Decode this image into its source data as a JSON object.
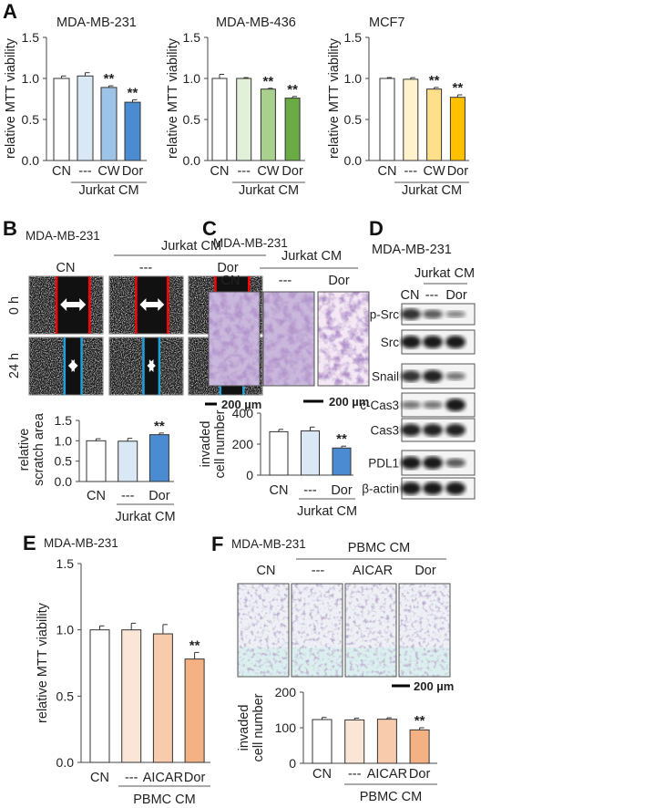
{
  "panels": {
    "A": {
      "label": "A"
    },
    "B": {
      "label": "B",
      "cell_line": "MDA-MB-231",
      "group": "Jurkat CM",
      "columns": [
        "CN",
        "---",
        "Dor"
      ],
      "rows": [
        "0 h",
        "24 h"
      ],
      "scale_bar": "200 µm"
    },
    "C": {
      "label": "C",
      "cell_line": "MDA-MB-231",
      "group": "Jurkat CM",
      "columns": [
        "CN",
        "---",
        "Dor"
      ],
      "scale_bar": "200 µm"
    },
    "D": {
      "label": "D",
      "cell_line": "MDA-MB-231",
      "group": "Jurkat CM",
      "columns": [
        "CN",
        "---",
        "Dor"
      ],
      "blots": [
        {
          "name": "p-Src",
          "intensity": [
            0.85,
            0.6,
            0.35
          ]
        },
        {
          "name": "Src",
          "intensity": [
            1,
            1,
            1
          ]
        },
        {
          "name": "Snail",
          "intensity": [
            0.85,
            0.95,
            0.45
          ]
        },
        {
          "name": "c-Cas3",
          "intensity": [
            0.45,
            0.45,
            1
          ]
        },
        {
          "name": "Cas3",
          "intensity": [
            0.95,
            0.95,
            0.95
          ]
        },
        {
          "name": "PDL1",
          "intensity": [
            1,
            1,
            0.6
          ]
        },
        {
          "name": "β-actin",
          "intensity": [
            1,
            1,
            1
          ]
        }
      ]
    },
    "E": {
      "label": "E",
      "cell_line": "MDA-MB-231"
    },
    "F": {
      "label": "F",
      "cell_line": "MDA-MB-231",
      "group": "PBMC CM",
      "columns": [
        "CN",
        "---",
        "AICAR",
        "Dor"
      ],
      "scale_bar": "200 µm"
    }
  },
  "chart_data": [
    {
      "id": "A1",
      "type": "bar",
      "title": "MDA-MB-231",
      "ylabel": "relative MTT viability",
      "ylim": [
        0,
        1.5
      ],
      "yticks": [
        "0.0",
        "0.5",
        "1.0",
        "1.5"
      ],
      "categories": [
        "CN",
        "---",
        "CW",
        "Dor"
      ],
      "values": [
        1.0,
        1.03,
        0.89,
        0.71
      ],
      "errors": [
        0.03,
        0.04,
        0.02,
        0.03
      ],
      "significance": [
        "",
        "",
        "**",
        "**"
      ],
      "group_label": "Jurkat CM",
      "colors": [
        "#ffffff",
        "#dae7f5",
        "#9dc3e6",
        "#4a8bd1"
      ]
    },
    {
      "id": "A2",
      "type": "bar",
      "title": "MDA-MB-436",
      "ylabel": "relative MTT viability",
      "ylim": [
        0,
        1.5
      ],
      "yticks": [
        "0.0",
        "0.5",
        "1.0",
        "1.5"
      ],
      "categories": [
        "CN",
        "---",
        "CW",
        "Dor"
      ],
      "values": [
        1.0,
        1.0,
        0.87,
        0.76
      ],
      "errors": [
        0.05,
        0.01,
        0.01,
        0.02
      ],
      "significance": [
        "",
        "",
        "**",
        "**"
      ],
      "group_label": "Jurkat CM",
      "colors": [
        "#ffffff",
        "#e2efd9",
        "#a9d18e",
        "#6aab45"
      ]
    },
    {
      "id": "A3",
      "type": "bar",
      "title": "MCF7",
      "ylabel": "relative MTT viability",
      "ylim": [
        0,
        1.5
      ],
      "yticks": [
        "0.0",
        "0.5",
        "1.0",
        "1.5"
      ],
      "categories": [
        "CN",
        "---",
        "CW",
        "Dor"
      ],
      "values": [
        1.0,
        0.99,
        0.87,
        0.77
      ],
      "errors": [
        0.01,
        0.02,
        0.02,
        0.03
      ],
      "significance": [
        "",
        "",
        "**",
        "**"
      ],
      "group_label": "Jurkat CM",
      "colors": [
        "#ffffff",
        "#fff2cc",
        "#ffe08a",
        "#ffc000"
      ]
    },
    {
      "id": "B",
      "type": "bar",
      "title": "",
      "ylabel": "relative scratch area",
      "ylim": [
        0,
        1.5
      ],
      "yticks": [
        "0.0",
        "0.5",
        "1.0",
        "1.5"
      ],
      "categories": [
        "CN",
        "---",
        "Dor"
      ],
      "values": [
        1.0,
        0.99,
        1.15
      ],
      "errors": [
        0.05,
        0.07,
        0.04
      ],
      "significance": [
        "",
        "",
        "**"
      ],
      "group_label": "Jurkat CM",
      "colors": [
        "#ffffff",
        "#dae7f5",
        "#4a8bd1"
      ]
    },
    {
      "id": "C",
      "type": "bar",
      "title": "",
      "ylabel": "invaded cell number",
      "ylim": [
        0,
        400
      ],
      "yticks": [
        "0",
        "200",
        "400"
      ],
      "categories": [
        "CN",
        "---",
        "Dor"
      ],
      "values": [
        280,
        285,
        175
      ],
      "errors": [
        15,
        25,
        12
      ],
      "significance": [
        "",
        "",
        "**"
      ],
      "group_label": "Jurkat CM",
      "colors": [
        "#ffffff",
        "#dae7f5",
        "#4a8bd1"
      ]
    },
    {
      "id": "E",
      "type": "bar",
      "title": "",
      "ylabel": "relative MTT viability",
      "ylim": [
        0,
        1.5
      ],
      "yticks": [
        "0.0",
        "0.5",
        "1.0",
        "1.5"
      ],
      "categories": [
        "CN",
        "---",
        "AICAR",
        "Dor"
      ],
      "values": [
        1.0,
        1.0,
        0.97,
        0.78
      ],
      "errors": [
        0.03,
        0.05,
        0.07,
        0.05
      ],
      "significance": [
        "",
        "",
        "",
        "**"
      ],
      "group_label": "PBMC CM",
      "colors": [
        "#ffffff",
        "#fbe5d6",
        "#f8cbad",
        "#f4b183"
      ]
    },
    {
      "id": "F",
      "type": "bar",
      "title": "",
      "ylabel": "invaded cell number",
      "ylim": [
        0,
        200
      ],
      "yticks": [
        "0",
        "100",
        "200"
      ],
      "categories": [
        "CN",
        "---",
        "AICAR",
        "Dor"
      ],
      "values": [
        123,
        122,
        124,
        94
      ],
      "errors": [
        6,
        5,
        4,
        6
      ],
      "significance": [
        "",
        "",
        "",
        "**"
      ],
      "group_label": "PBMC CM",
      "colors": [
        "#ffffff",
        "#fbe5d6",
        "#f8cbad",
        "#f4b183"
      ]
    }
  ]
}
